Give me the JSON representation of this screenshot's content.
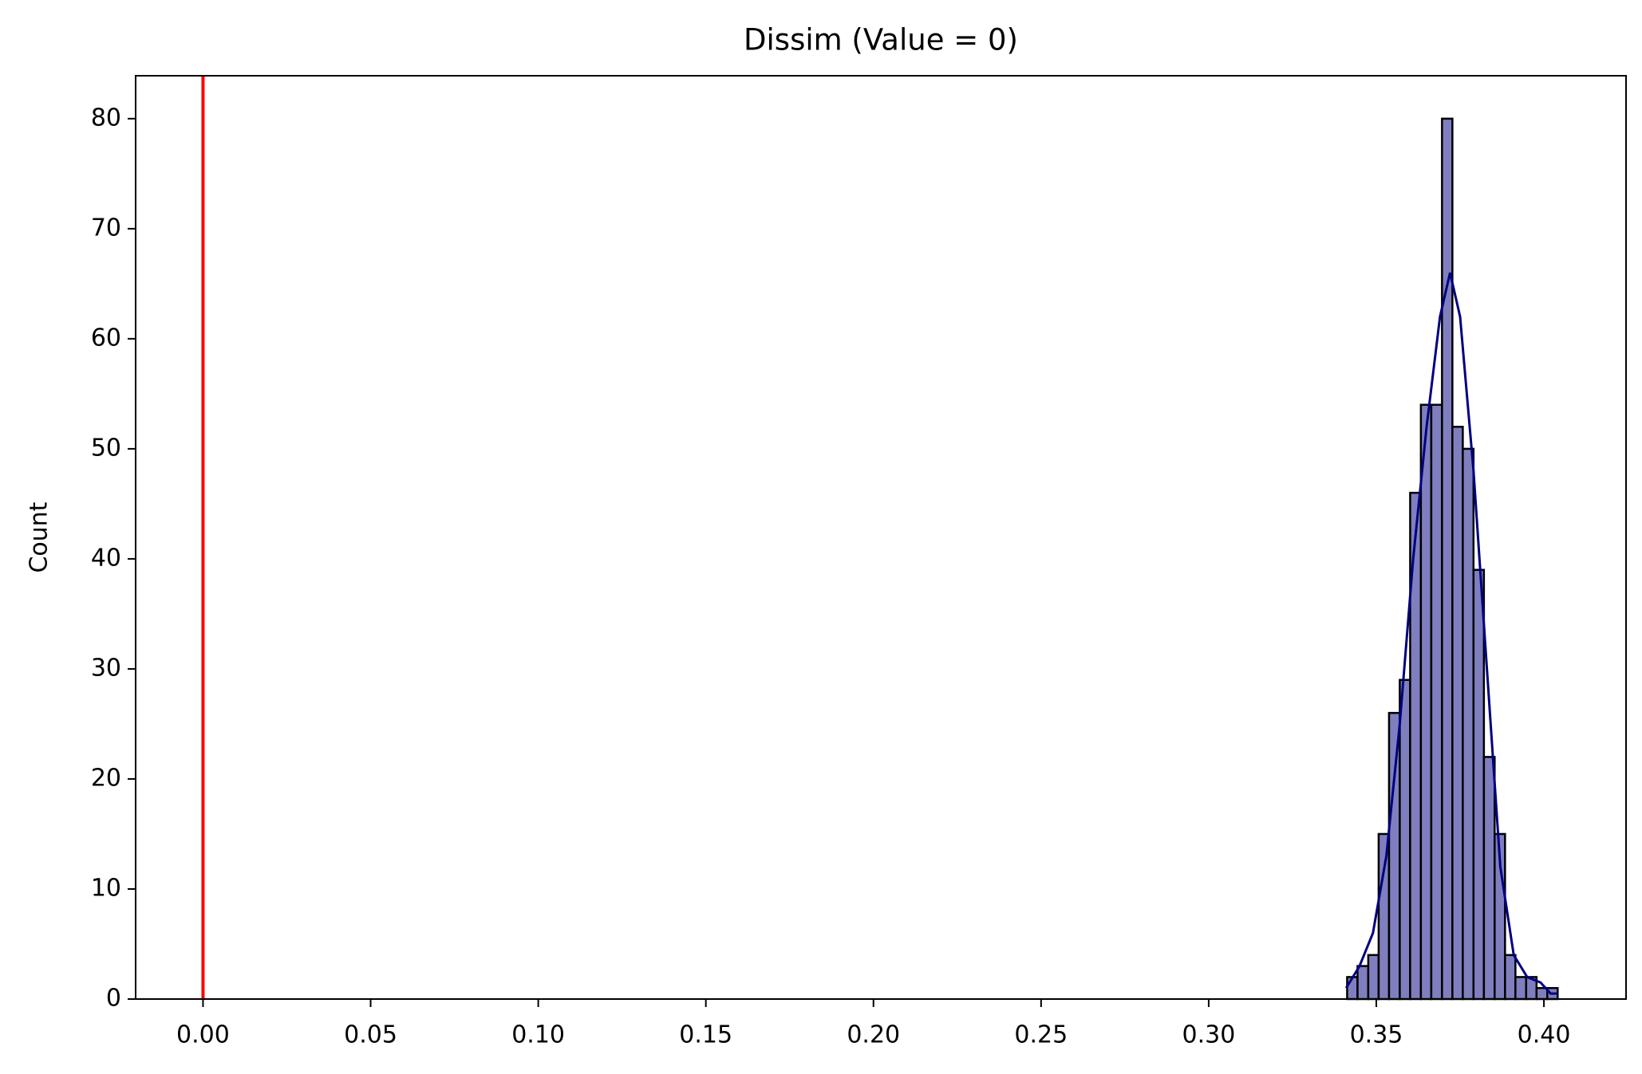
{
  "chart_data": {
    "type": "histogram",
    "title": "Dissim (Value = 0)",
    "y_label": "Count",
    "bins": [
      0.3413,
      0.3444,
      0.3476,
      0.3507,
      0.3538,
      0.357,
      0.3601,
      0.3633,
      0.3664,
      0.3696,
      0.3727,
      0.3758,
      0.379,
      0.3821,
      0.3853,
      0.3884,
      0.3915,
      0.3947,
      0.3978,
      0.401,
      0.4041
    ],
    "counts": [
      2,
      3,
      4,
      15,
      26,
      29,
      46,
      54,
      54,
      80,
      52,
      50,
      39,
      22,
      15,
      4,
      2,
      2,
      1,
      1
    ],
    "color": "#7f7fbf",
    "edgecolor": "#000000",
    "kde": {
      "color": "#000080",
      "x": [
        0.341,
        0.345,
        0.349,
        0.353,
        0.357,
        0.361,
        0.365,
        0.369,
        0.372,
        0.375,
        0.379,
        0.383,
        0.387,
        0.391,
        0.395,
        0.399,
        0.402,
        0.404
      ],
      "y": [
        1,
        3,
        6,
        13,
        25,
        40,
        52,
        62,
        66,
        62,
        48,
        30,
        12,
        4,
        2,
        1.5,
        0.5,
        0.5
      ]
    },
    "vline": {
      "x": 0,
      "color": "#ff0000"
    },
    "xlim": [
      -0.0201,
      0.4245
    ],
    "ylim": [
      0,
      83.9
    ],
    "xticks": [
      {
        "value": 0,
        "label": "0.00"
      },
      {
        "value": 0.05,
        "label": "0.05"
      },
      {
        "value": 0.1,
        "label": "0.10"
      },
      {
        "value": 0.15,
        "label": "0.15"
      },
      {
        "value": 0.2,
        "label": "0.20"
      },
      {
        "value": 0.25,
        "label": "0.25"
      },
      {
        "value": 0.3,
        "label": "0.30"
      },
      {
        "value": 0.35,
        "label": "0.35"
      },
      {
        "value": 0.4,
        "label": "0.40"
      }
    ],
    "yticks": [
      0,
      10,
      20,
      30,
      40,
      50,
      60,
      70,
      80
    ]
  }
}
